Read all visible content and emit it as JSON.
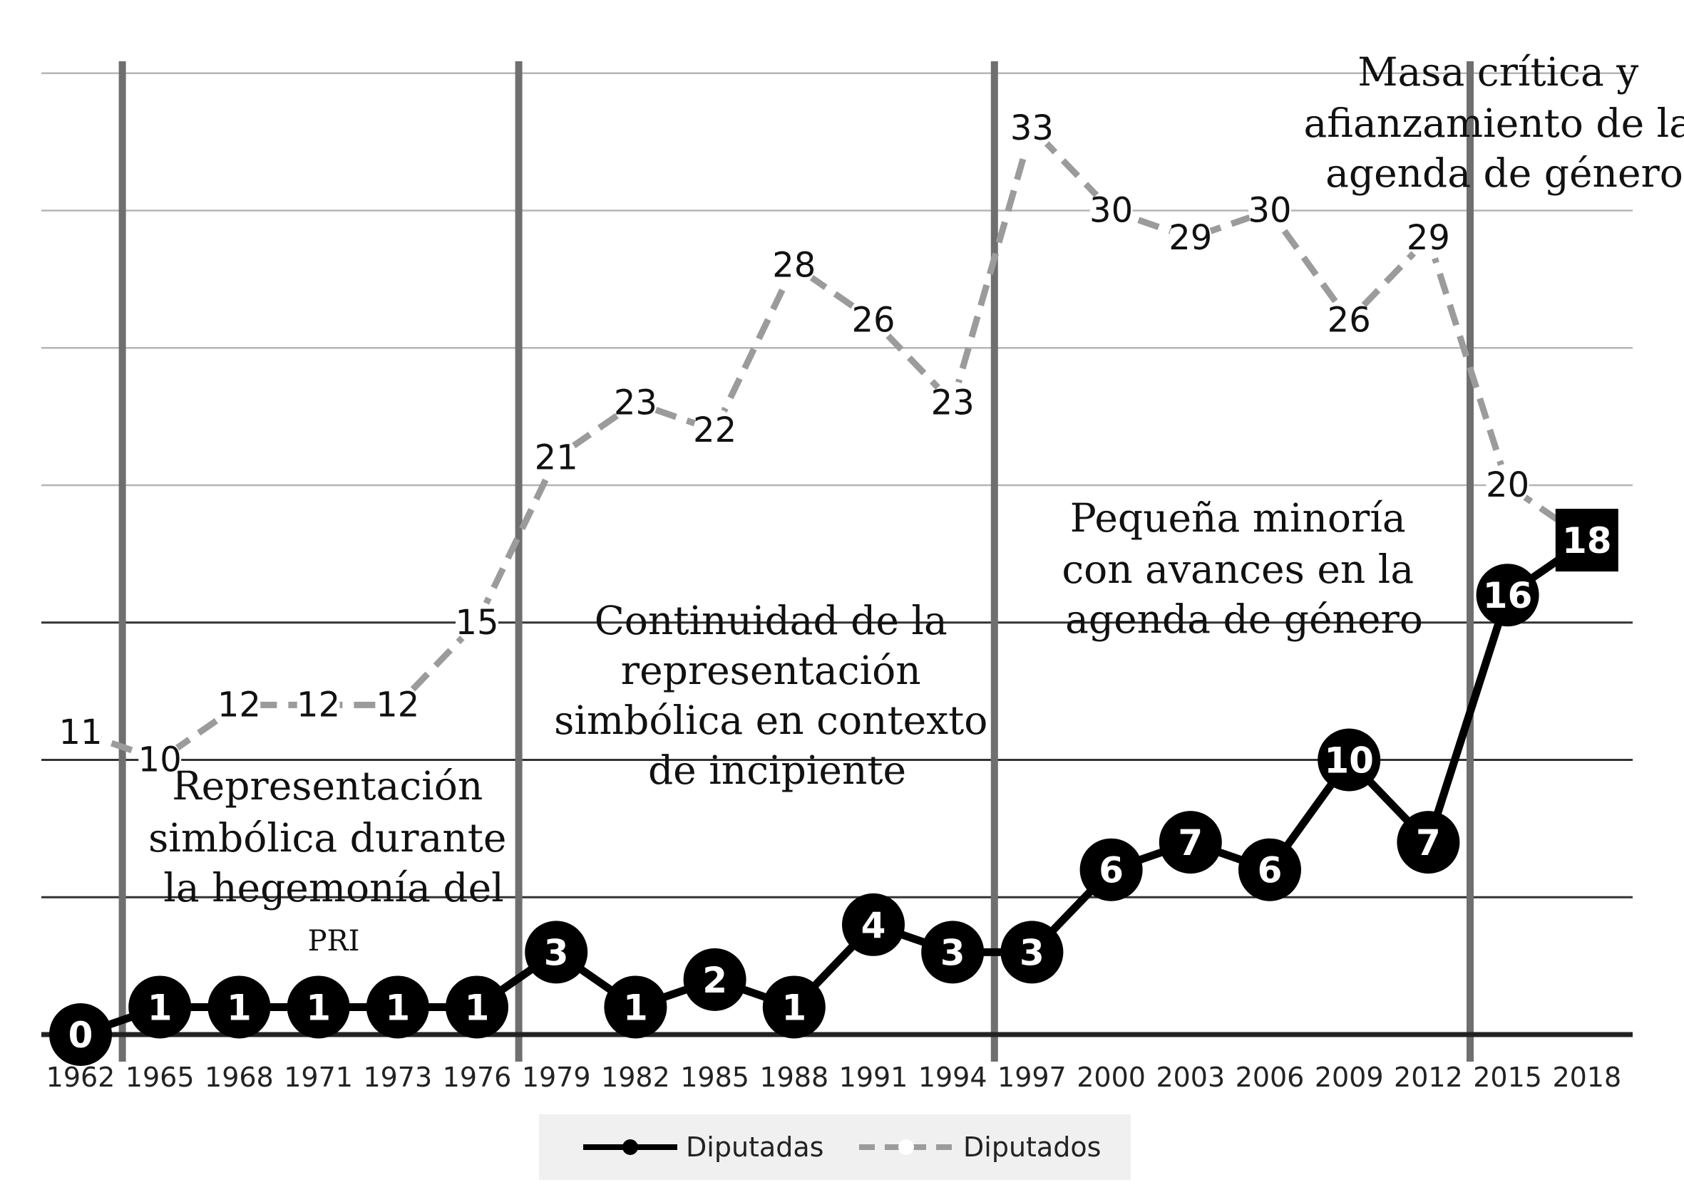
{
  "chart_data": {
    "type": "line",
    "categories": [
      "1962",
      "1965",
      "1968",
      "1971",
      "1973",
      "1976",
      "1979",
      "1982",
      "1985",
      "1988",
      "1991",
      "1994",
      "1997",
      "2000",
      "2003",
      "2006",
      "2009",
      "2012",
      "2015",
      "2018"
    ],
    "series": [
      {
        "name": "Diputadas",
        "values": [
          0,
          1,
          1,
          1,
          1,
          1,
          3,
          1,
          2,
          1,
          4,
          3,
          3,
          6,
          7,
          6,
          10,
          7,
          16,
          18
        ],
        "color": "#000000"
      },
      {
        "name": "Diputados",
        "values": [
          11,
          10,
          12,
          12,
          12,
          15,
          21,
          23,
          22,
          28,
          26,
          23,
          33,
          30,
          29,
          30,
          26,
          29,
          20,
          18
        ],
        "color": "#9b9b9b"
      }
    ],
    "ylim": [
      0,
      35
    ],
    "legend_position": "bottom",
    "period_separators_after": [
      "1962",
      "1976",
      "1994",
      "2012"
    ],
    "annotations": [
      {
        "id": "p1",
        "lines": [
          "Representación",
          "simbólica durante",
          "la hegemonía del",
          "PRI"
        ]
      },
      {
        "id": "p2",
        "lines": [
          "Continuidad de la",
          "representación",
          "simbólica en contexto",
          "de incipiente"
        ]
      },
      {
        "id": "p3",
        "lines": [
          "Pequeña minoría",
          "con avances en la",
          "agenda de género"
        ]
      },
      {
        "id": "p4",
        "lines": [
          "Masa crítica y",
          "afianzamiento de la",
          "agenda de género"
        ]
      }
    ]
  }
}
